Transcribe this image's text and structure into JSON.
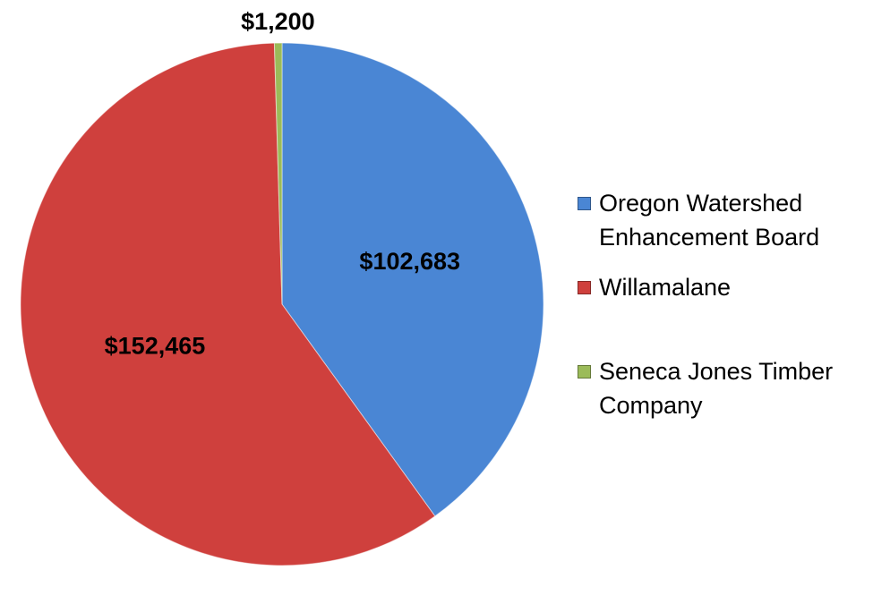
{
  "chart_data": {
    "type": "pie",
    "categories": [
      "Oregon Watershed Enhancement Board",
      "Willamalane",
      "Seneca Jones Timber Company"
    ],
    "values": [
      102683,
      152465,
      1200
    ],
    "value_labels": [
      "$102,683",
      "$152,465",
      "$1,200"
    ],
    "colors": [
      "#4a86d4",
      "#cf403d",
      "#9bbb59"
    ],
    "legend": "right"
  }
}
